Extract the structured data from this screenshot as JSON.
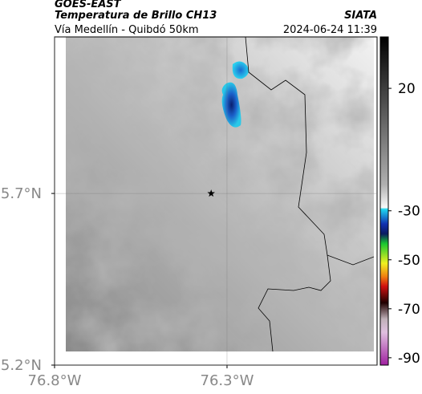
{
  "header": {
    "title": "GOES-EAST",
    "subtitle": "Temperatura de Brillo CH13",
    "source": "SIATA",
    "route": "Vía Medellín - Quibdó 50km",
    "datetime": "2024-06-24 11:39"
  },
  "map": {
    "xlim": [
      -76.8,
      -75.865
    ],
    "ylim": [
      5.2,
      6.156
    ],
    "xticks": [
      {
        "value": -76.8,
        "label": "76.8°W"
      },
      {
        "value": -76.3,
        "label": "76.3°W"
      }
    ],
    "yticks": [
      {
        "value": 5.2,
        "label": "5.2°N"
      },
      {
        "value": 5.7,
        "label": "5.7°N"
      }
    ],
    "marker": {
      "lon": -76.346,
      "lat": 5.7
    },
    "colorbar": {
      "lim": [
        -93,
        41
      ],
      "ticks": [
        20,
        -30,
        -50,
        -70,
        -90
      ]
    }
  }
}
